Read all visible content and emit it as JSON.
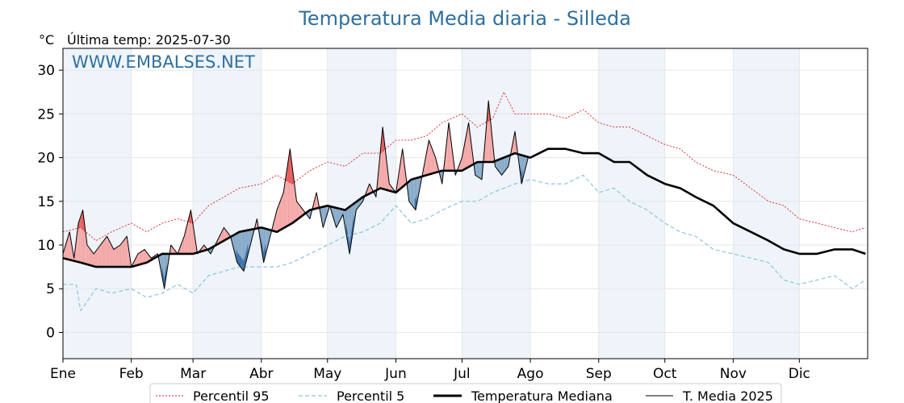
{
  "chart_data": {
    "type": "line",
    "title": "Temperatura Media diaria - Silleda",
    "unit_label": "°C",
    "subtitle": "Última temp: 2025-07-30",
    "watermark": "WWW.EMBALSES.NET",
    "xlim": [
      0,
      365
    ],
    "ylim": [
      -3,
      32.5
    ],
    "grid": true,
    "yticks": [
      0,
      5,
      10,
      15,
      20,
      25,
      30
    ],
    "months": [
      "Ene",
      "Feb",
      "Mar",
      "Abr",
      "May",
      "Jun",
      "Jul",
      "Ago",
      "Sep",
      "Oct",
      "Nov",
      "Dic"
    ],
    "month_starts": [
      0,
      31,
      59,
      90,
      120,
      151,
      181,
      212,
      243,
      273,
      304,
      334
    ],
    "colors": {
      "p95": "#e31a1c",
      "p5": "#8ec5da",
      "median": "#000000",
      "current": "#000000",
      "above_median_fill": "#f4a6a6",
      "above_p95_fill": "#e55a5a",
      "below_median_fill": "#86a9c9",
      "below_p5_fill": "#3a6fa8",
      "shade_band": "#eef4fa"
    },
    "legend": {
      "position": "bottom-center",
      "entries": [
        "Percentil 95",
        "Percentil 5",
        "Temperatura Mediana",
        "T. Media 2025"
      ]
    },
    "series": [
      {
        "name": "Percentil 95",
        "style": "dotted",
        "x": [
          0,
          8,
          15,
          22,
          31,
          38,
          45,
          52,
          59,
          66,
          73,
          80,
          90,
          97,
          104,
          112,
          120,
          128,
          136,
          144,
          151,
          158,
          165,
          172,
          181,
          188,
          195,
          200,
          205,
          212,
          220,
          228,
          236,
          243,
          250,
          257,
          265,
          273,
          280,
          287,
          295,
          304,
          312,
          320,
          327,
          334,
          342,
          350,
          358,
          364
        ],
        "y": [
          11.5,
          12,
          10.5,
          11.5,
          12.5,
          11.5,
          12.5,
          13,
          12.5,
          14.5,
          15.5,
          16.5,
          17,
          18,
          17,
          18.5,
          19.5,
          19,
          20.5,
          20.5,
          22,
          22,
          22.5,
          24,
          25,
          23.5,
          24.5,
          27.5,
          25,
          25,
          25,
          24.5,
          25.5,
          24,
          23.5,
          23.5,
          22.5,
          21.5,
          21,
          19.5,
          18.5,
          18,
          16.5,
          15,
          14.5,
          13,
          12.5,
          12,
          11.5,
          12
        ]
      },
      {
        "name": "Percentil 5",
        "style": "dashed",
        "x": [
          0,
          6,
          8,
          15,
          22,
          31,
          38,
          45,
          52,
          59,
          66,
          73,
          80,
          90,
          97,
          104,
          112,
          120,
          128,
          136,
          144,
          151,
          158,
          165,
          172,
          181,
          188,
          195,
          205,
          212,
          220,
          228,
          236,
          243,
          250,
          257,
          265,
          273,
          280,
          287,
          295,
          304,
          312,
          320,
          327,
          334,
          342,
          350,
          358,
          364
        ],
        "y": [
          5.5,
          5.5,
          2.5,
          5,
          4.5,
          5,
          4,
          4.5,
          5.5,
          4.5,
          6.5,
          7,
          7.5,
          7.5,
          7.5,
          8,
          9,
          10,
          11,
          11.5,
          12.5,
          14.5,
          12.5,
          13,
          14,
          15,
          15,
          16,
          17,
          17.5,
          17,
          17,
          18,
          16,
          16.5,
          15,
          14,
          12.5,
          11.5,
          11,
          9.5,
          9,
          8.5,
          8,
          6,
          5.5,
          6,
          6.5,
          5,
          6
        ]
      },
      {
        "name": "Temperatura Mediana",
        "style": "solid-thick",
        "x": [
          0,
          8,
          15,
          22,
          31,
          38,
          45,
          52,
          59,
          66,
          73,
          80,
          90,
          97,
          104,
          112,
          120,
          128,
          136,
          144,
          151,
          158,
          165,
          172,
          181,
          188,
          195,
          205,
          212,
          220,
          228,
          236,
          243,
          250,
          257,
          265,
          273,
          280,
          287,
          295,
          304,
          312,
          320,
          327,
          334,
          342,
          350,
          358,
          364
        ],
        "y": [
          8.5,
          8,
          7.5,
          7.5,
          7.5,
          8,
          9,
          9,
          9,
          9.5,
          10.5,
          11.5,
          12,
          11.5,
          12.5,
          14,
          14.5,
          14,
          15.5,
          16.5,
          16,
          17.5,
          18,
          18.5,
          18.5,
          19.5,
          19.5,
          20.5,
          20,
          21,
          21,
          20.5,
          20.5,
          19.5,
          19.5,
          18,
          17,
          16.5,
          15.5,
          14.5,
          12.5,
          11.5,
          10.5,
          9.5,
          9,
          9,
          9.5,
          9.5,
          9
        ]
      },
      {
        "name": "T. Media 2025",
        "style": "solid-thin",
        "x": [
          0,
          3,
          5,
          7,
          9,
          11,
          14,
          17,
          20,
          23,
          26,
          29,
          31,
          34,
          37,
          40,
          43,
          46,
          49,
          52,
          55,
          58,
          61,
          64,
          67,
          70,
          73,
          76,
          79,
          82,
          85,
          88,
          91,
          94,
          97,
          100,
          103,
          106,
          109,
          112,
          115,
          118,
          121,
          124,
          127,
          130,
          133,
          136,
          139,
          142,
          145,
          148,
          151,
          154,
          157,
          160,
          163,
          166,
          169,
          172,
          175,
          178,
          181,
          184,
          187,
          190,
          193,
          196,
          199,
          202,
          205,
          208,
          211
        ],
        "y": [
          9,
          11.5,
          8.5,
          12.5,
          14,
          10,
          9,
          10,
          11,
          9.5,
          10,
          11,
          7.5,
          9,
          9.5,
          8.5,
          9,
          5,
          10,
          9,
          11,
          14,
          9,
          10,
          9,
          10.5,
          12,
          11,
          8,
          7,
          10,
          13,
          8,
          11,
          14,
          16,
          21,
          15,
          14,
          13,
          16,
          12,
          14.5,
          12,
          13.5,
          9,
          14,
          15,
          17,
          15.5,
          23.5,
          17,
          16,
          21,
          15,
          14,
          18,
          22,
          20,
          17,
          24,
          18,
          20,
          24,
          18,
          17.5,
          26.5,
          19,
          18,
          19,
          23,
          17,
          20
        ]
      }
    ]
  }
}
